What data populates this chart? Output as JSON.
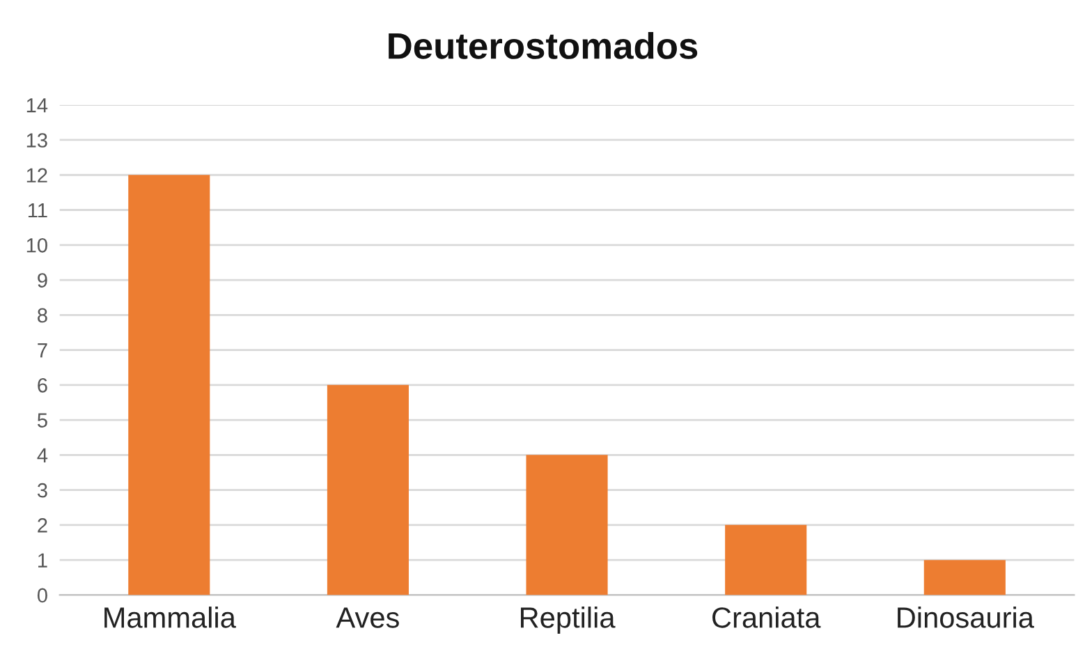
{
  "chart_data": {
    "type": "bar",
    "title": "Deuterostomados",
    "categories": [
      "Mammalia",
      "Aves",
      "Reptilia",
      "Craniata",
      "Dinosauria"
    ],
    "values": [
      12,
      6,
      4,
      2,
      1
    ],
    "color": "#ed7d31",
    "ylim": [
      0,
      14
    ],
    "yticks": [
      0,
      1,
      2,
      3,
      4,
      5,
      6,
      7,
      8,
      9,
      10,
      11,
      12,
      13,
      14
    ],
    "grid": "y"
  }
}
